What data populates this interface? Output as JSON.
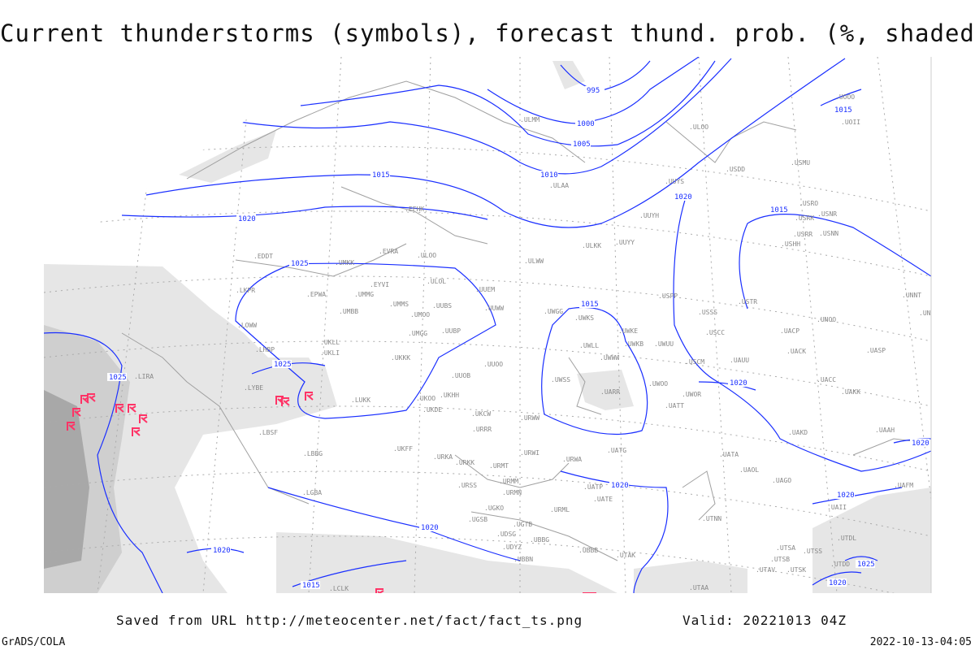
{
  "title": "Current thunderstorms (symbols), forecast thund. prob. (%, shaded)",
  "footer": {
    "saved": "Saved from URL http://meteocenter.net/fact/fact_ts.png",
    "valid": "Valid: 20221013 04Z",
    "software": "GrADS/COLA",
    "generated": "2022-10-13-04:05"
  },
  "colors": {
    "isobar": "#1a2fff",
    "thunderstorm_symbol": "#ff3366",
    "shading_light": "#e6e6e6",
    "shading_mid": "#cfcfcf",
    "shading_dark": "#a8a8a8",
    "coastline": "#a0a0a0"
  },
  "isobars": [
    "995",
    "1000",
    "1005",
    "1010",
    "1015",
    "1020",
    "1025",
    "1025",
    "1015",
    "1020",
    "1025",
    "1020",
    "1020",
    "1015",
    "1020",
    "1015",
    "1020",
    "1020",
    "1025",
    "1015",
    "1020",
    "1020"
  ],
  "stations": [
    "ULMM",
    "ULOO",
    "UUYS",
    "ULAA",
    "USDD",
    "USMU",
    "UOOO",
    "UOII",
    "UUYH",
    "USRO",
    "USRK",
    "USNR",
    "USRR",
    "USNN",
    "USHH",
    "UUYY",
    "ULKK",
    "ULWW",
    "EFHK",
    "EVRA",
    "ULOO",
    "EDDT",
    "UMKK",
    "ULOL",
    "EYVI",
    "EPWA",
    "UMMG",
    "UMBB",
    "LKPR",
    "UMMS",
    "UUBS",
    "UMOO",
    "UUEM",
    "UUWW",
    "UWGG",
    "UWKS",
    "UMGG",
    "UUBP",
    "USPP",
    "USSS",
    "USTR",
    "UNNT",
    "UNBB",
    "UNOO",
    "LOWW",
    "UKLL",
    "UKLI",
    "LHBP",
    "USCC",
    "UACP",
    "UWLL",
    "UWKE",
    "UWKB",
    "UWUU",
    "UWWW",
    "UKKK",
    "UUOO",
    "USCM",
    "UAUU",
    "UACK",
    "UASP",
    "LIRA",
    "UUOB",
    "UWSS",
    "LYBE",
    "UKHH",
    "UKOO",
    "UARR",
    "UWOO",
    "UWOR",
    "UACC",
    "UAKK",
    "LUKK",
    "UKDE",
    "UKCW",
    "URWW",
    "UATT",
    "LBSF",
    "URRR",
    "UAKD",
    "UAAH",
    "UKFF",
    "URKA",
    "URWI",
    "UATG",
    "UATA",
    "LBBG",
    "URKK",
    "URMT",
    "URWA",
    "UAOL",
    "URMM",
    "UAGO",
    "URSS",
    "URMN",
    "UATP",
    "UATE",
    "LGBA",
    "UGKO",
    "UGSB",
    "URML",
    "UTNN",
    "UGTB",
    "UDSG",
    "UBBG",
    "UDYZ",
    "UBBB",
    "UTSA",
    "UTSB",
    "UTSS",
    "UTDD",
    "UBBN",
    "UTAK",
    "UTAV",
    "UTSK",
    "LCLK",
    "UTAA",
    "UAFM",
    "UAII",
    "UTDL"
  ]
}
